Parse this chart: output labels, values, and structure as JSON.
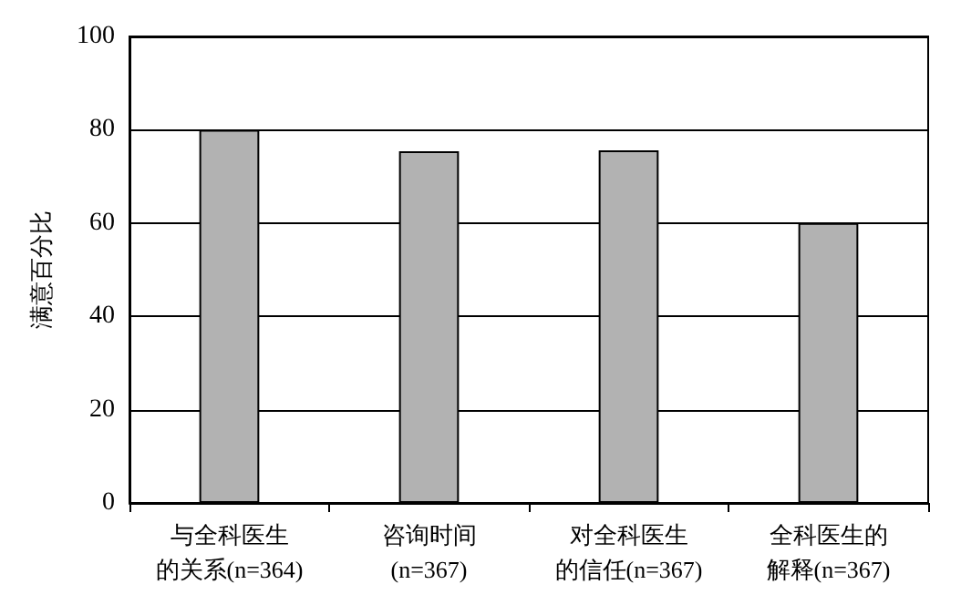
{
  "chart_data": {
    "type": "bar",
    "ylabel": "满意百分比",
    "categories": [
      "与全科医生的关系(n=364)",
      "咨询时间(n=367)",
      "对全科医生的信任(n=367)",
      "全科医生的解释(n=367)"
    ],
    "values": [
      80,
      75.4,
      75.6,
      60
    ],
    "color": "#b2b2b2",
    "ylim": [
      0,
      100
    ],
    "yticks": [
      0,
      20,
      40,
      60,
      80,
      100
    ],
    "grid": "y"
  }
}
